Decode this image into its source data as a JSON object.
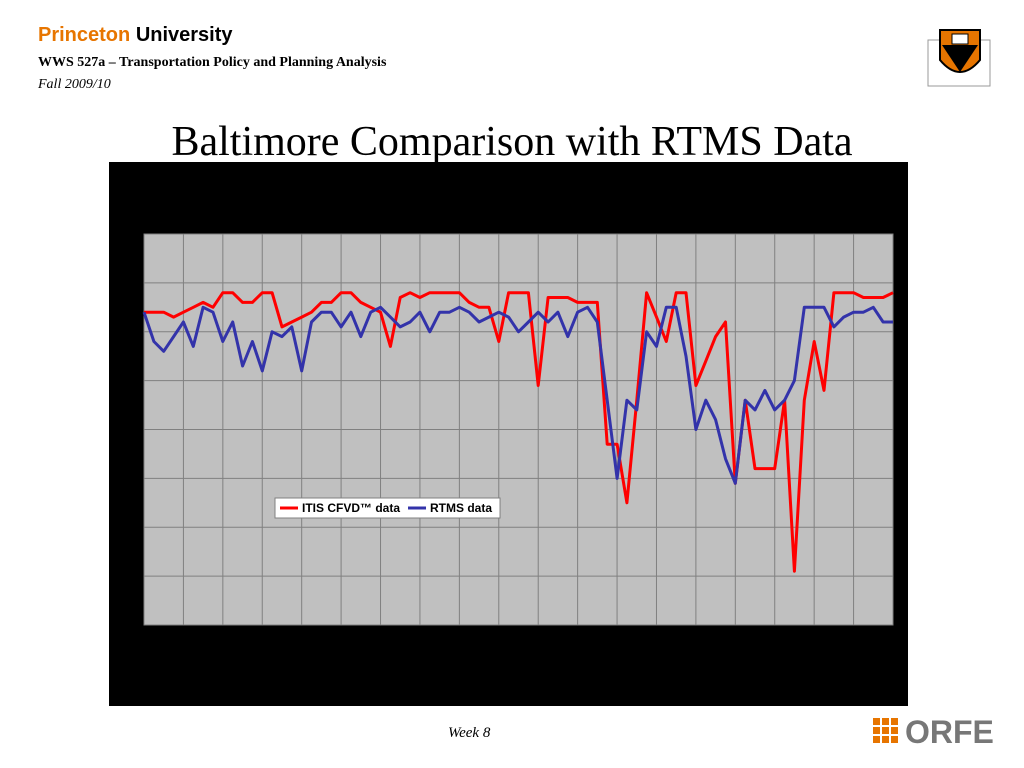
{
  "header": {
    "brand_name": "Princeton",
    "brand_word": "University",
    "course": "WWS 527a – Transportation Policy and Planning Analysis",
    "term": "Fall 2009/10"
  },
  "slide_title": "Baltimore Comparison with RTMS Data",
  "footer": {
    "week": "Week 8",
    "logo": "ORFE"
  },
  "chart_data": {
    "type": "line",
    "grid": true,
    "legend": "center",
    "xlim": [
      0,
      76
    ],
    "xticks": [
      0,
      4,
      8,
      12,
      16,
      20,
      24,
      28,
      32,
      36,
      40,
      44,
      48,
      52,
      56,
      60,
      64,
      68,
      72,
      76
    ],
    "ylim": [
      0,
      8
    ],
    "yticks": [
      0,
      1,
      2,
      3,
      4,
      5,
      6,
      7,
      8
    ],
    "series": [
      {
        "name": "ITIS CFVD™ data",
        "color": "#ff0000",
        "values": [
          6.4,
          6.4,
          6.4,
          6.3,
          6.4,
          6.5,
          6.6,
          6.5,
          6.8,
          6.8,
          6.6,
          6.6,
          6.8,
          6.8,
          6.1,
          6.2,
          6.3,
          6.4,
          6.6,
          6.6,
          6.8,
          6.8,
          6.6,
          6.5,
          6.4,
          5.7,
          6.7,
          6.8,
          6.7,
          6.8,
          6.8,
          6.8,
          6.8,
          6.6,
          6.5,
          6.5,
          5.8,
          6.8,
          6.8,
          6.8,
          4.9,
          6.7,
          6.7,
          6.7,
          6.6,
          6.6,
          6.6,
          3.7,
          3.7,
          2.5,
          4.6,
          6.8,
          6.3,
          5.8,
          6.8,
          6.8,
          4.9,
          5.4,
          5.9,
          6.2,
          2.9,
          4.6,
          3.2,
          3.2,
          3.2,
          4.6,
          1.1,
          4.6,
          5.8,
          4.8,
          6.8,
          6.8,
          6.8,
          6.7,
          6.7,
          6.7,
          6.8
        ]
      },
      {
        "name": "RTMS data",
        "color": "#3333aa",
        "values": [
          6.4,
          5.8,
          5.6,
          5.9,
          6.2,
          5.7,
          6.5,
          6.4,
          5.8,
          6.2,
          5.3,
          5.8,
          5.2,
          6.0,
          5.9,
          6.1,
          5.2,
          6.2,
          6.4,
          6.4,
          6.1,
          6.4,
          5.9,
          6.4,
          6.5,
          6.3,
          6.1,
          6.2,
          6.4,
          6.0,
          6.4,
          6.4,
          6.5,
          6.4,
          6.2,
          6.3,
          6.4,
          6.3,
          6.0,
          6.2,
          6.4,
          6.2,
          6.4,
          5.9,
          6.4,
          6.5,
          6.2,
          4.6,
          3.0,
          4.6,
          4.4,
          6.0,
          5.7,
          6.5,
          6.5,
          5.5,
          4.0,
          4.6,
          4.2,
          3.4,
          2.9,
          4.6,
          4.4,
          4.8,
          4.4,
          4.6,
          5.0,
          6.5,
          6.5,
          6.5,
          6.1,
          6.3,
          6.4,
          6.4,
          6.5,
          6.2,
          6.2
        ]
      }
    ]
  }
}
